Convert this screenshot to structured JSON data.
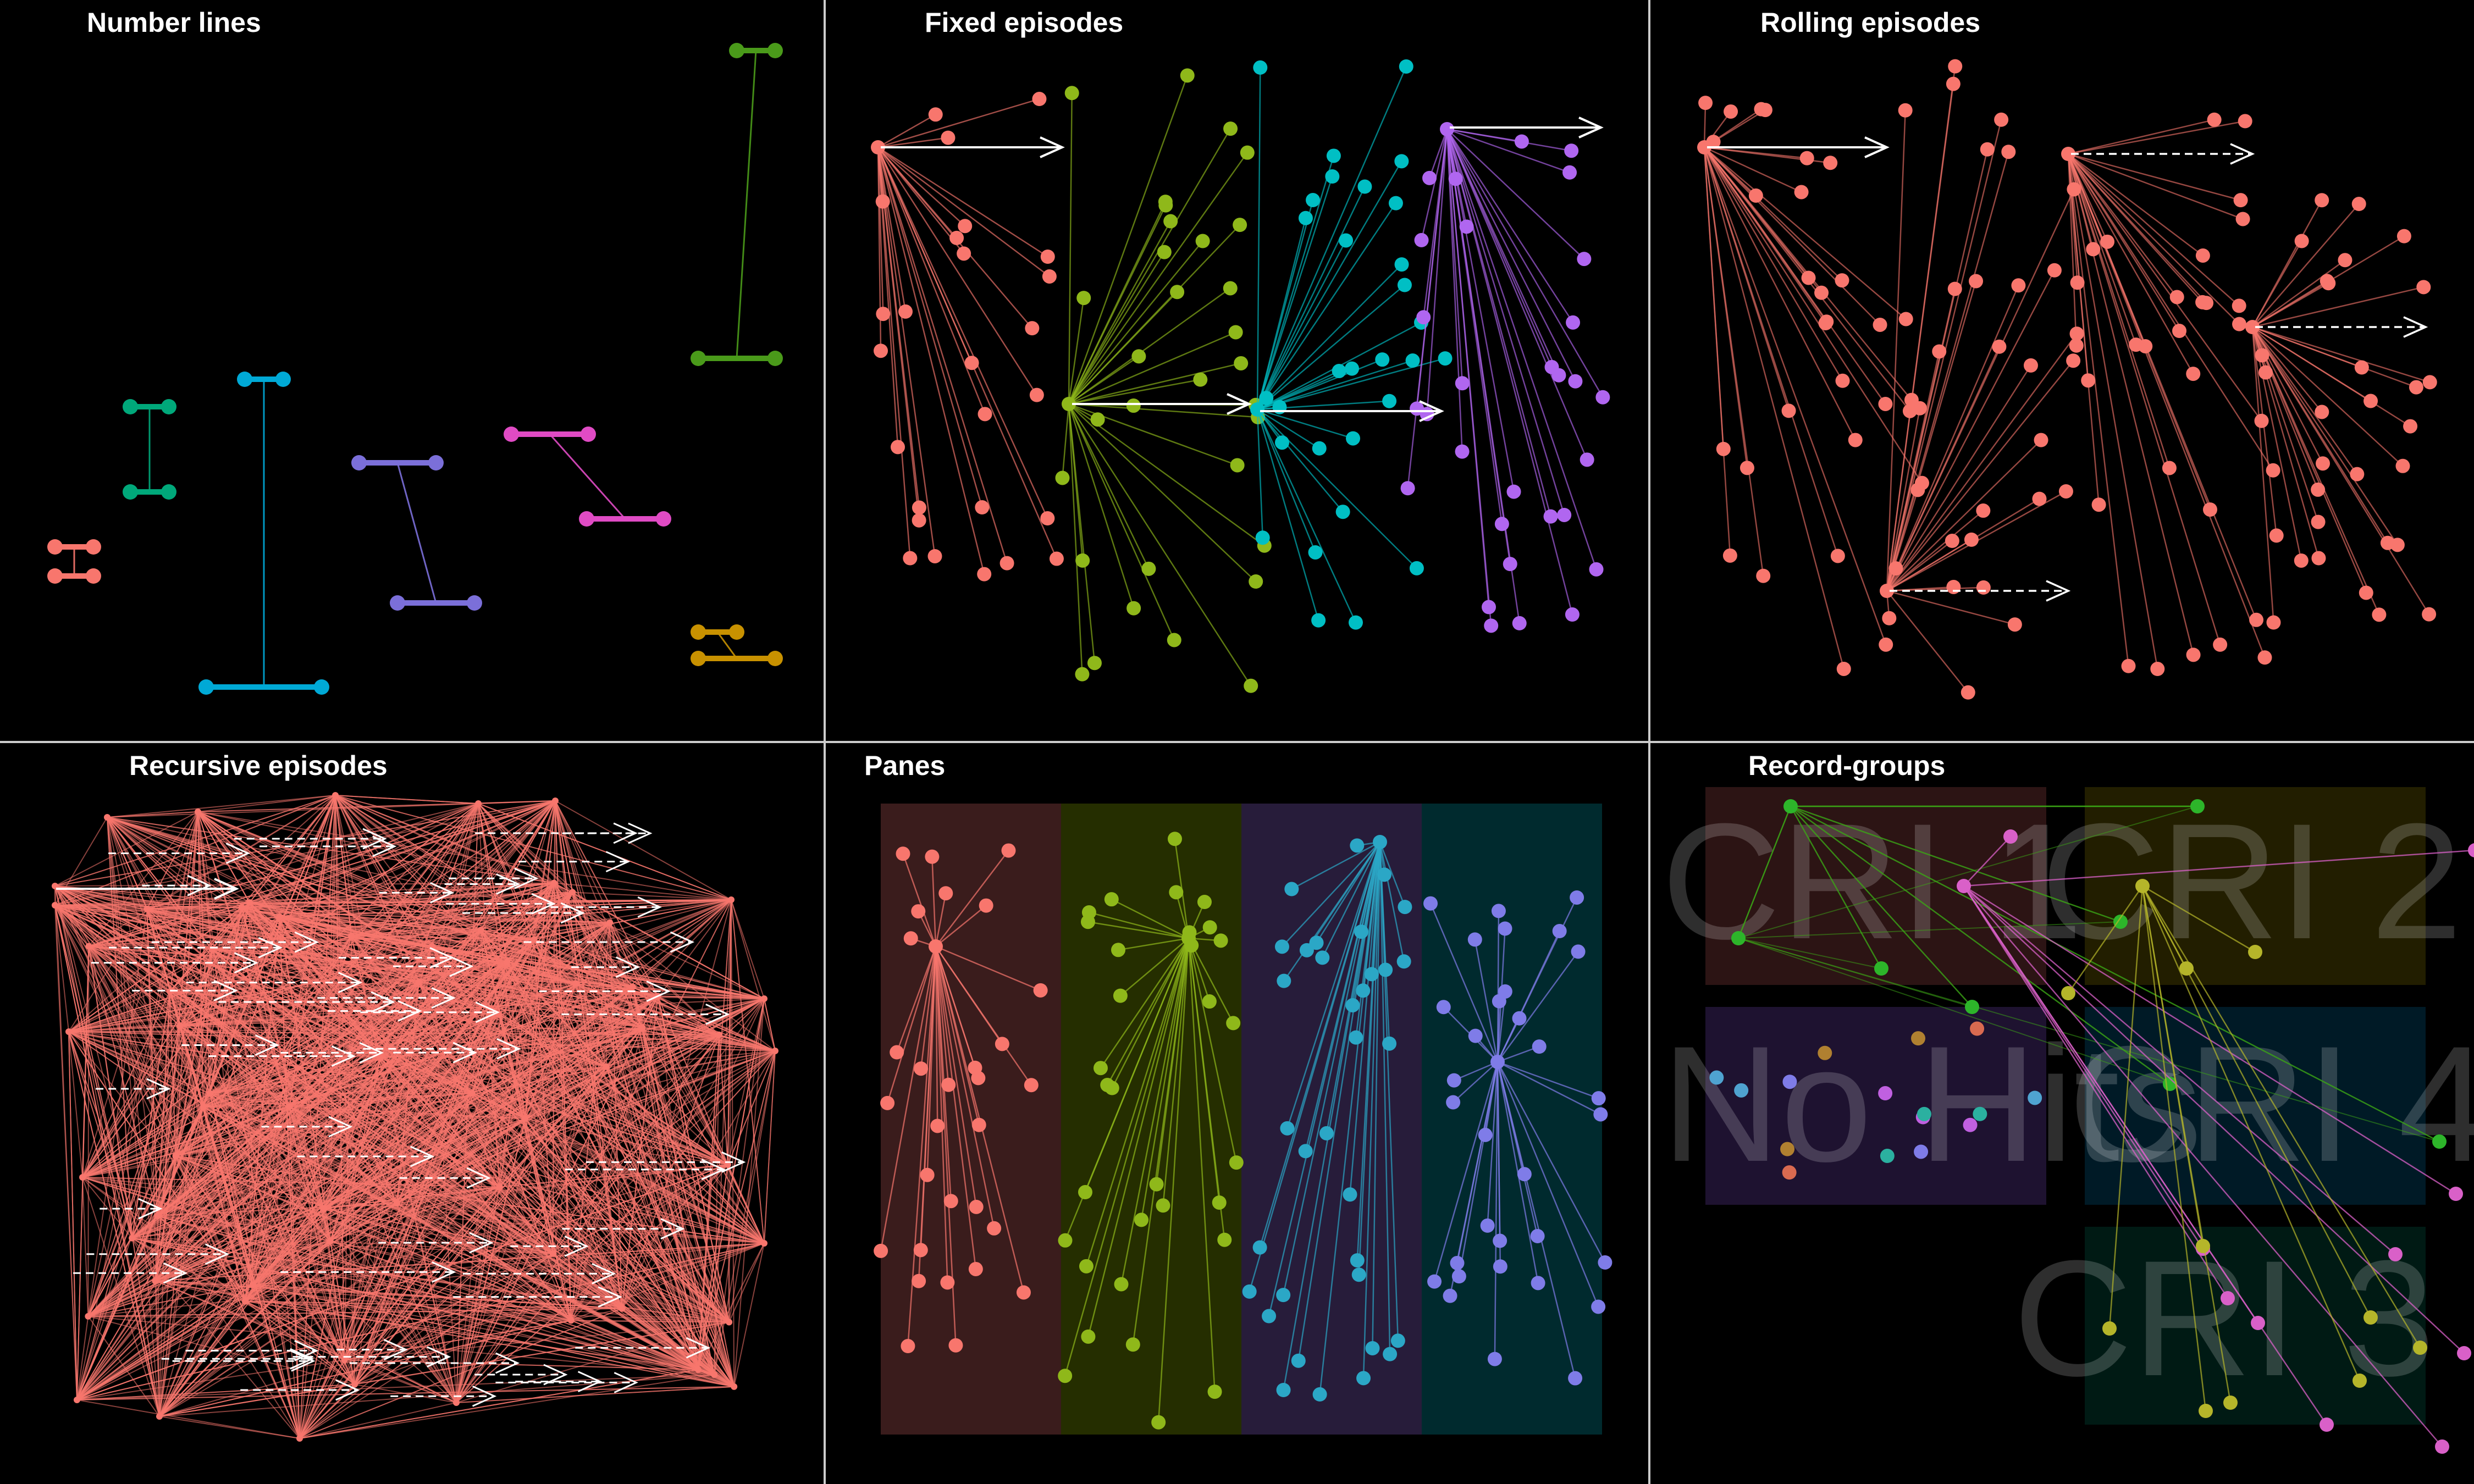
{
  "panels": [
    {
      "id": "number-lines",
      "title": "Number lines"
    },
    {
      "id": "fixed-episodes",
      "title": "Fixed episodes"
    },
    {
      "id": "rolling-episodes",
      "title": "Rolling episodes"
    },
    {
      "id": "recursive-episodes",
      "title": "Recursive episodes"
    },
    {
      "id": "panes",
      "title": "Panes"
    },
    {
      "id": "record-groups",
      "title": "Record-groups"
    }
  ],
  "record_group_labels": [
    "CRI 1",
    "CRI 2",
    "No Hits",
    "CRI 4",
    "CRI 3"
  ],
  "colors": {
    "red": "#F8766D",
    "green": "#00A87A",
    "cyan": "#00A9D6",
    "blue": "#7B6FD9",
    "magenta": "#E04BC4",
    "gold": "#C89100",
    "olive": "#8FB81A",
    "lightgreen": "#3BA515",
    "teal": "#00BFC4",
    "purple": "#B066F0",
    "white": "#FFFFFF",
    "frame": "#CCCCCC"
  }
}
